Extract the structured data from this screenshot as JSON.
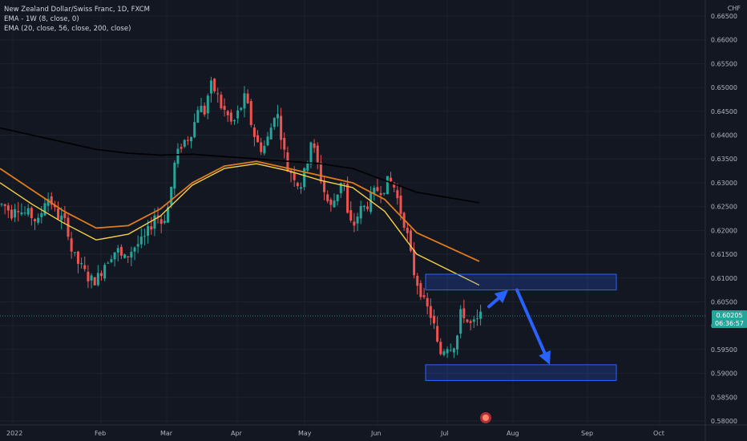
{
  "header": {
    "title": "New Zealand Dollar/Swiss Franc, 1D, FXCM",
    "indicator_1": "EMA - 1W (8, close, 0)",
    "indicator_2": "EMA (20, close, 56, close, 200, close)"
  },
  "price_axis": {
    "currency": "CHF",
    "last_price": "0.60205",
    "countdown": "06:36:57"
  },
  "colors": {
    "background": "#131722",
    "up": "#26a69a",
    "down": "#ef5350",
    "ema_weekly": "#f7d046",
    "ema_56": "#e07b1c",
    "ema_200": "#000000",
    "zone": "#2962ff",
    "arrow": "#2962ff",
    "last_price_badge": "#26a69a"
  },
  "chart_data": {
    "type": "candlestick",
    "symbol": "NZDCHF",
    "timeframe": "1D",
    "x_labels": [
      "2022",
      "Feb",
      "Mar",
      "Apr",
      "May",
      "Jun",
      "Jul",
      "Aug",
      "Sep",
      "Oct"
    ],
    "y_ticks": [
      "0.66500",
      "0.66000",
      "0.65500",
      "0.65000",
      "0.64500",
      "0.64000",
      "0.63500",
      "0.63000",
      "0.62500",
      "0.62000",
      "0.61500",
      "0.61000",
      "0.60500",
      "0.60000",
      "0.59500",
      "0.59000",
      "0.58500",
      "0.58000"
    ],
    "ylim": [
      0.5795,
      0.6655
    ],
    "series": [
      {
        "name": "EMA - 1W (8, close, 0)",
        "values": [
          0.63,
          0.6255,
          0.6215,
          0.618,
          0.6192,
          0.623,
          0.6295,
          0.633,
          0.634,
          0.6325,
          0.6305,
          0.629,
          0.624,
          0.615,
          0.6085
        ]
      },
      {
        "name": "EMA (20)",
        "values": [
          0.633,
          0.6285,
          0.624,
          0.6205,
          0.621,
          0.6245,
          0.63,
          0.6335,
          0.6345,
          0.633,
          0.6315,
          0.63,
          0.6265,
          0.6195,
          0.6135
        ]
      },
      {
        "name": "EMA (200)",
        "values": [
          0.6415,
          0.64,
          0.6385,
          0.637,
          0.6362,
          0.6358,
          0.636,
          0.6355,
          0.635,
          0.6345,
          0.634,
          0.633,
          0.6305,
          0.628,
          0.6258
        ]
      }
    ],
    "annotations": [
      {
        "type": "zone",
        "from": 0.6075,
        "to": 0.6108
      },
      {
        "type": "zone",
        "from": 0.5885,
        "to": 0.5918
      },
      {
        "type": "arrow",
        "from": 0.604,
        "to": 0.6075
      },
      {
        "type": "arrow",
        "from": 0.6075,
        "to": 0.5918
      }
    ],
    "last_price": 0.60205
  }
}
